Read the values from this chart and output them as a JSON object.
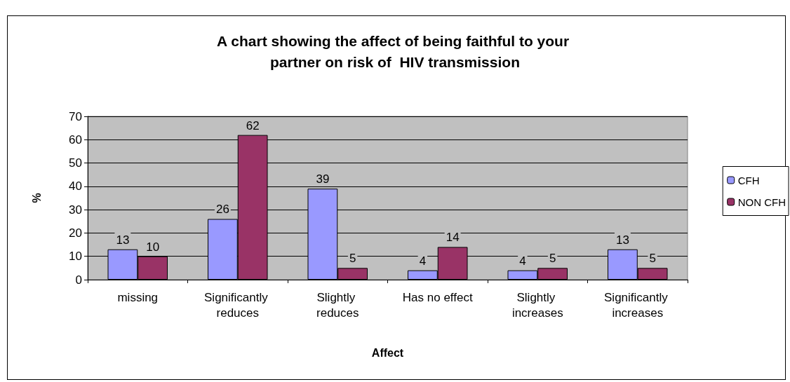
{
  "chart_data": {
    "type": "bar",
    "title": "A chart showing the affect of being faithful to your partner on risk of  HIV transmission",
    "xlabel": "Affect",
    "ylabel": "%",
    "categories": [
      "missing",
      "Significantly reduces",
      "Slightly reduces",
      "Has no effect",
      "Slightly increases",
      "Significantly increases"
    ],
    "series": [
      {
        "name": "CFH",
        "color": "#9999ff",
        "values": [
          13,
          26,
          39,
          4,
          4,
          13
        ]
      },
      {
        "name": "NON CFH",
        "color": "#993366",
        "values": [
          10,
          62,
          5,
          14,
          5,
          5
        ]
      }
    ],
    "ylim": [
      0,
      70
    ],
    "yticks": [
      0,
      10,
      20,
      30,
      40,
      50,
      60,
      70
    ],
    "grid": "y",
    "legend": "right",
    "data_labels": true
  }
}
